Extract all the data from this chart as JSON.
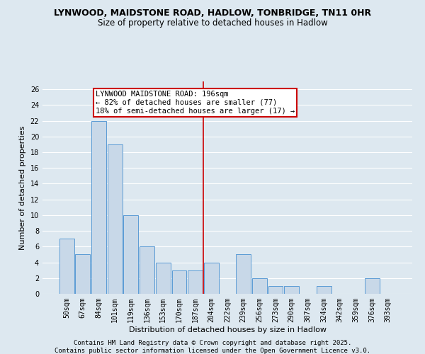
{
  "title": "LYNWOOD, MAIDSTONE ROAD, HADLOW, TONBRIDGE, TN11 0HR",
  "subtitle": "Size of property relative to detached houses in Hadlow",
  "xlabel": "Distribution of detached houses by size in Hadlow",
  "ylabel": "Number of detached properties",
  "categories": [
    "50sqm",
    "67sqm",
    "84sqm",
    "101sqm",
    "119sqm",
    "136sqm",
    "153sqm",
    "170sqm",
    "187sqm",
    "204sqm",
    "222sqm",
    "239sqm",
    "256sqm",
    "273sqm",
    "290sqm",
    "307sqm",
    "324sqm",
    "342sqm",
    "359sqm",
    "376sqm",
    "393sqm"
  ],
  "values": [
    7,
    5,
    22,
    19,
    10,
    6,
    4,
    3,
    3,
    4,
    0,
    5,
    2,
    1,
    1,
    0,
    1,
    0,
    0,
    2,
    0
  ],
  "bar_color": "#c8d8e8",
  "bar_edge_color": "#5b9bd5",
  "ylim": [
    0,
    27
  ],
  "yticks": [
    0,
    2,
    4,
    6,
    8,
    10,
    12,
    14,
    16,
    18,
    20,
    22,
    24,
    26
  ],
  "property_line_x": 8.5,
  "annotation_line1": "LYNWOOD MAIDSTONE ROAD: 196sqm",
  "annotation_line2": "← 82% of detached houses are smaller (77)",
  "annotation_line3": "18% of semi-detached houses are larger (17) →",
  "annotation_box_color": "#ffffff",
  "annotation_box_edge": "#cc0000",
  "line_color": "#cc0000",
  "footer1": "Contains HM Land Registry data © Crown copyright and database right 2025.",
  "footer2": "Contains public sector information licensed under the Open Government Licence v3.0.",
  "bg_color": "#dde8f0",
  "grid_color": "#ffffff",
  "title_fontsize": 9,
  "subtitle_fontsize": 8.5,
  "tick_fontsize": 7,
  "label_fontsize": 8,
  "footer_fontsize": 6.5
}
